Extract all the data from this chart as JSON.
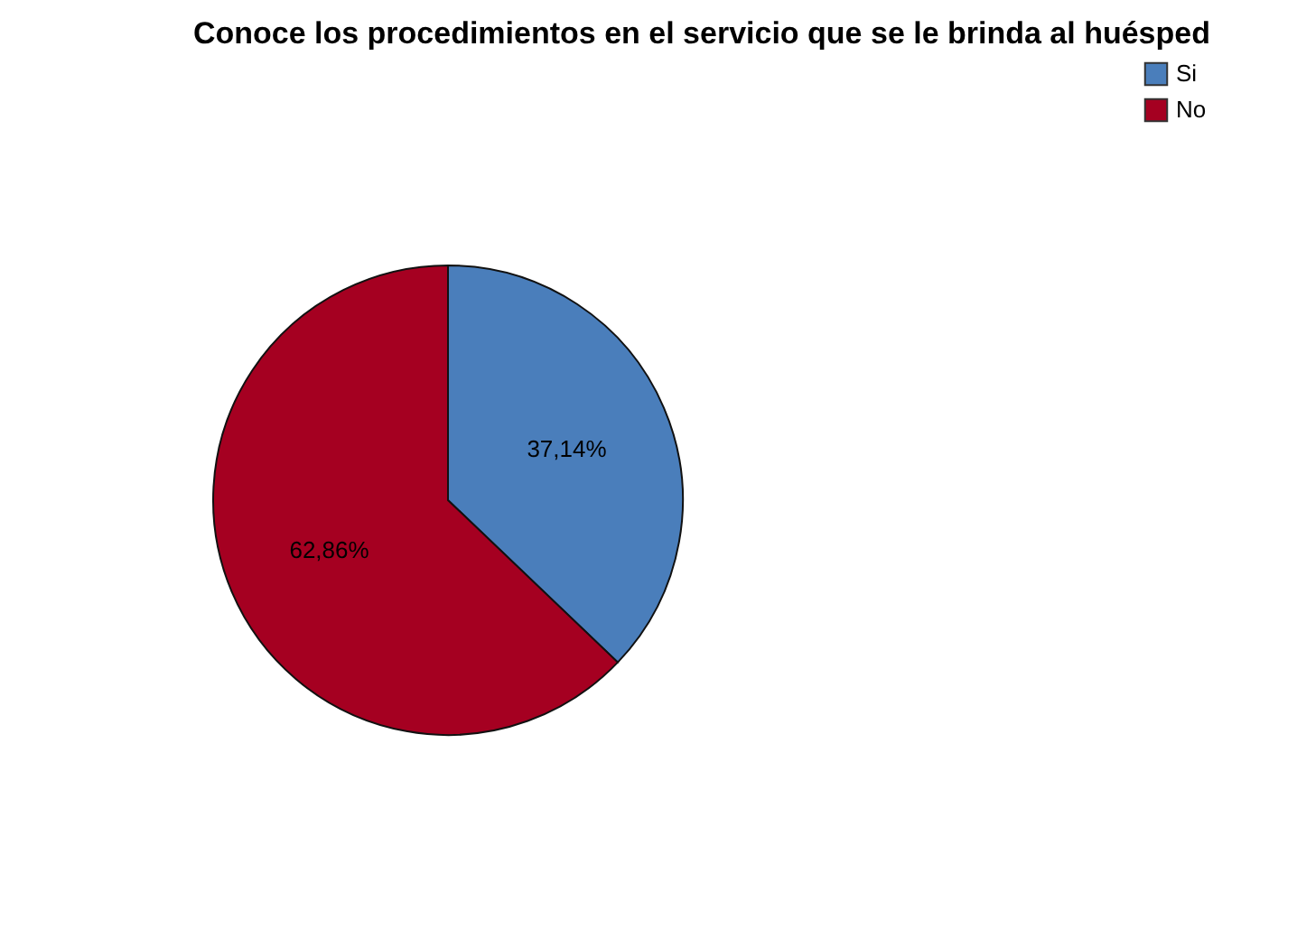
{
  "chart_data": {
    "type": "pie",
    "title": "Conoce los procedimientos en el servicio que se le brinda al huésped",
    "categories": [
      "Si",
      "No"
    ],
    "values": [
      37.14,
      62.86
    ],
    "colors": [
      "#4a7ebb",
      "#a50021"
    ],
    "value_labels": [
      "37,14%",
      "62,86%"
    ],
    "legend": "top right"
  }
}
